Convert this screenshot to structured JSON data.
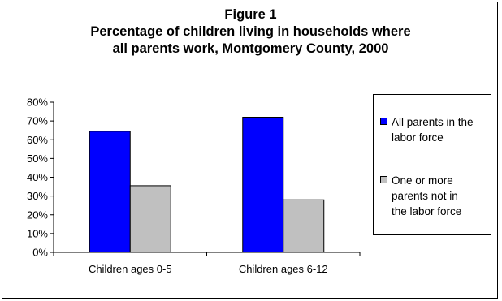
{
  "chart_data": {
    "type": "bar",
    "title_lines": [
      "Figure 1",
      "Percentage of children living in households where",
      "all parents work, Montgomery County, 2000"
    ],
    "categories": [
      "Children ages 0-5",
      "Children ages 6-12"
    ],
    "series": [
      {
        "name": "All parents in the labor force",
        "values": [
          64.5,
          72
        ],
        "color": "#0000ff"
      },
      {
        "name": "One or more parents not in the labor force",
        "values": [
          35.5,
          28
        ],
        "color": "#c0c0c0"
      }
    ],
    "legend_label_lines": [
      [
        "All parents in the",
        "labor force"
      ],
      [
        "One or more",
        "parents not in",
        "the labor force"
      ]
    ],
    "yticks": [
      "0%",
      "10%",
      "20%",
      "30%",
      "40%",
      "50%",
      "60%",
      "70%",
      "80%"
    ],
    "ylim": [
      0,
      80
    ],
    "grid": false,
    "legend": "right",
    "xlabel": "",
    "ylabel": ""
  }
}
